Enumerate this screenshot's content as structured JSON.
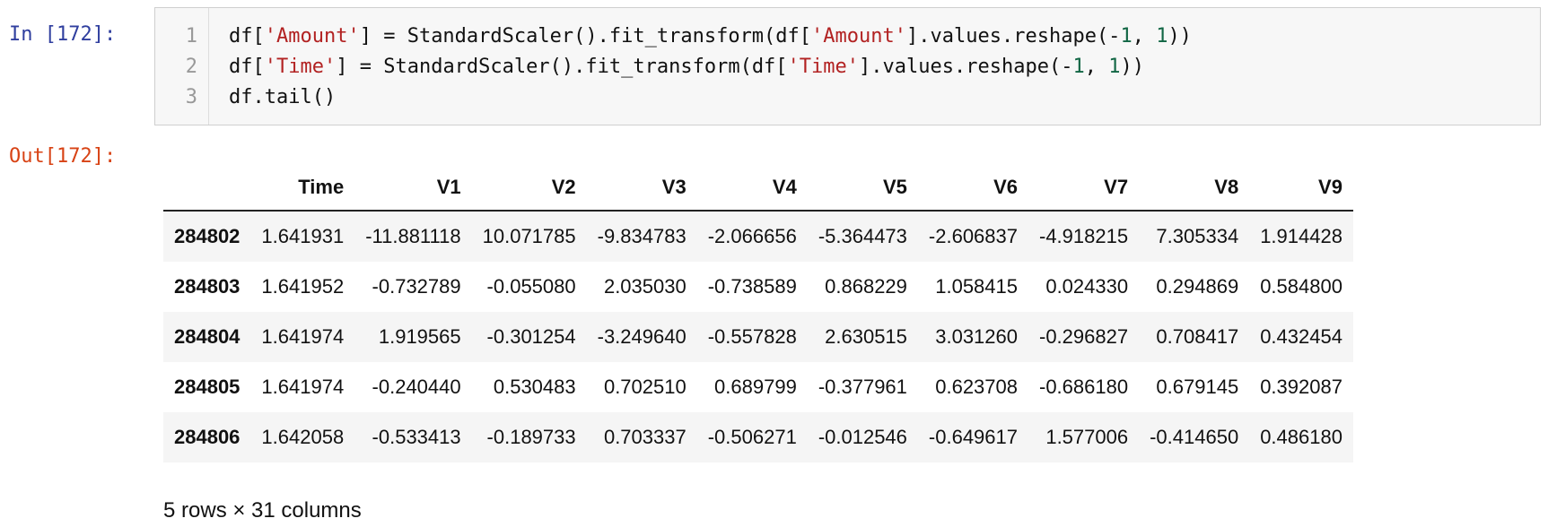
{
  "input_cell": {
    "prompt": "In [172]:",
    "line_numbers": [
      "1",
      "2",
      "3"
    ],
    "lines": [
      {
        "p1": "df[",
        "s1": "'Amount'",
        "p2": "] = StandardScaler().fit_transform(df[",
        "s2": "'Amount'",
        "p3": "].values.reshape(-",
        "n1": "1",
        "p4": ", ",
        "n2": "1",
        "p5": "))"
      },
      {
        "p1": "df[",
        "s1": "'Time'",
        "p2": "] = StandardScaler().fit_transform(df[",
        "s2": "'Time'",
        "p3": "].values.reshape(-",
        "n1": "1",
        "p4": ", ",
        "n2": "1",
        "p5": "))"
      },
      {
        "p1": "df.tail()"
      }
    ]
  },
  "output_cell": {
    "prompt": "Out[172]:",
    "table": {
      "columns": [
        "",
        "Time",
        "V1",
        "V2",
        "V3",
        "V4",
        "V5",
        "V6",
        "V7",
        "V8",
        "V9"
      ],
      "rows": [
        {
          "index": "284802",
          "cells": [
            "1.641931",
            "-11.881118",
            "10.071785",
            "-9.834783",
            "-2.066656",
            "-5.364473",
            "-2.606837",
            "-4.918215",
            "7.305334",
            "1.914428"
          ]
        },
        {
          "index": "284803",
          "cells": [
            "1.641952",
            "-0.732789",
            "-0.055080",
            "2.035030",
            "-0.738589",
            "0.868229",
            "1.058415",
            "0.024330",
            "0.294869",
            "0.584800"
          ]
        },
        {
          "index": "284804",
          "cells": [
            "1.641974",
            "1.919565",
            "-0.301254",
            "-3.249640",
            "-0.557828",
            "2.630515",
            "3.031260",
            "-0.296827",
            "0.708417",
            "0.432454"
          ]
        },
        {
          "index": "284805",
          "cells": [
            "1.641974",
            "-0.240440",
            "0.530483",
            "0.702510",
            "0.689799",
            "-0.377961",
            "0.623708",
            "-0.686180",
            "0.679145",
            "0.392087"
          ]
        },
        {
          "index": "284806",
          "cells": [
            "1.642058",
            "-0.533413",
            "-0.189733",
            "0.703337",
            "-0.506271",
            "-0.012546",
            "-0.649617",
            "1.577006",
            "-0.414650",
            "0.486180"
          ]
        }
      ]
    },
    "shape_text": "5 rows × 31 columns"
  },
  "colors": {
    "in_prompt": "#303f9f",
    "out_prompt": "#d84315",
    "string": "#b22222",
    "number": "#116644"
  }
}
